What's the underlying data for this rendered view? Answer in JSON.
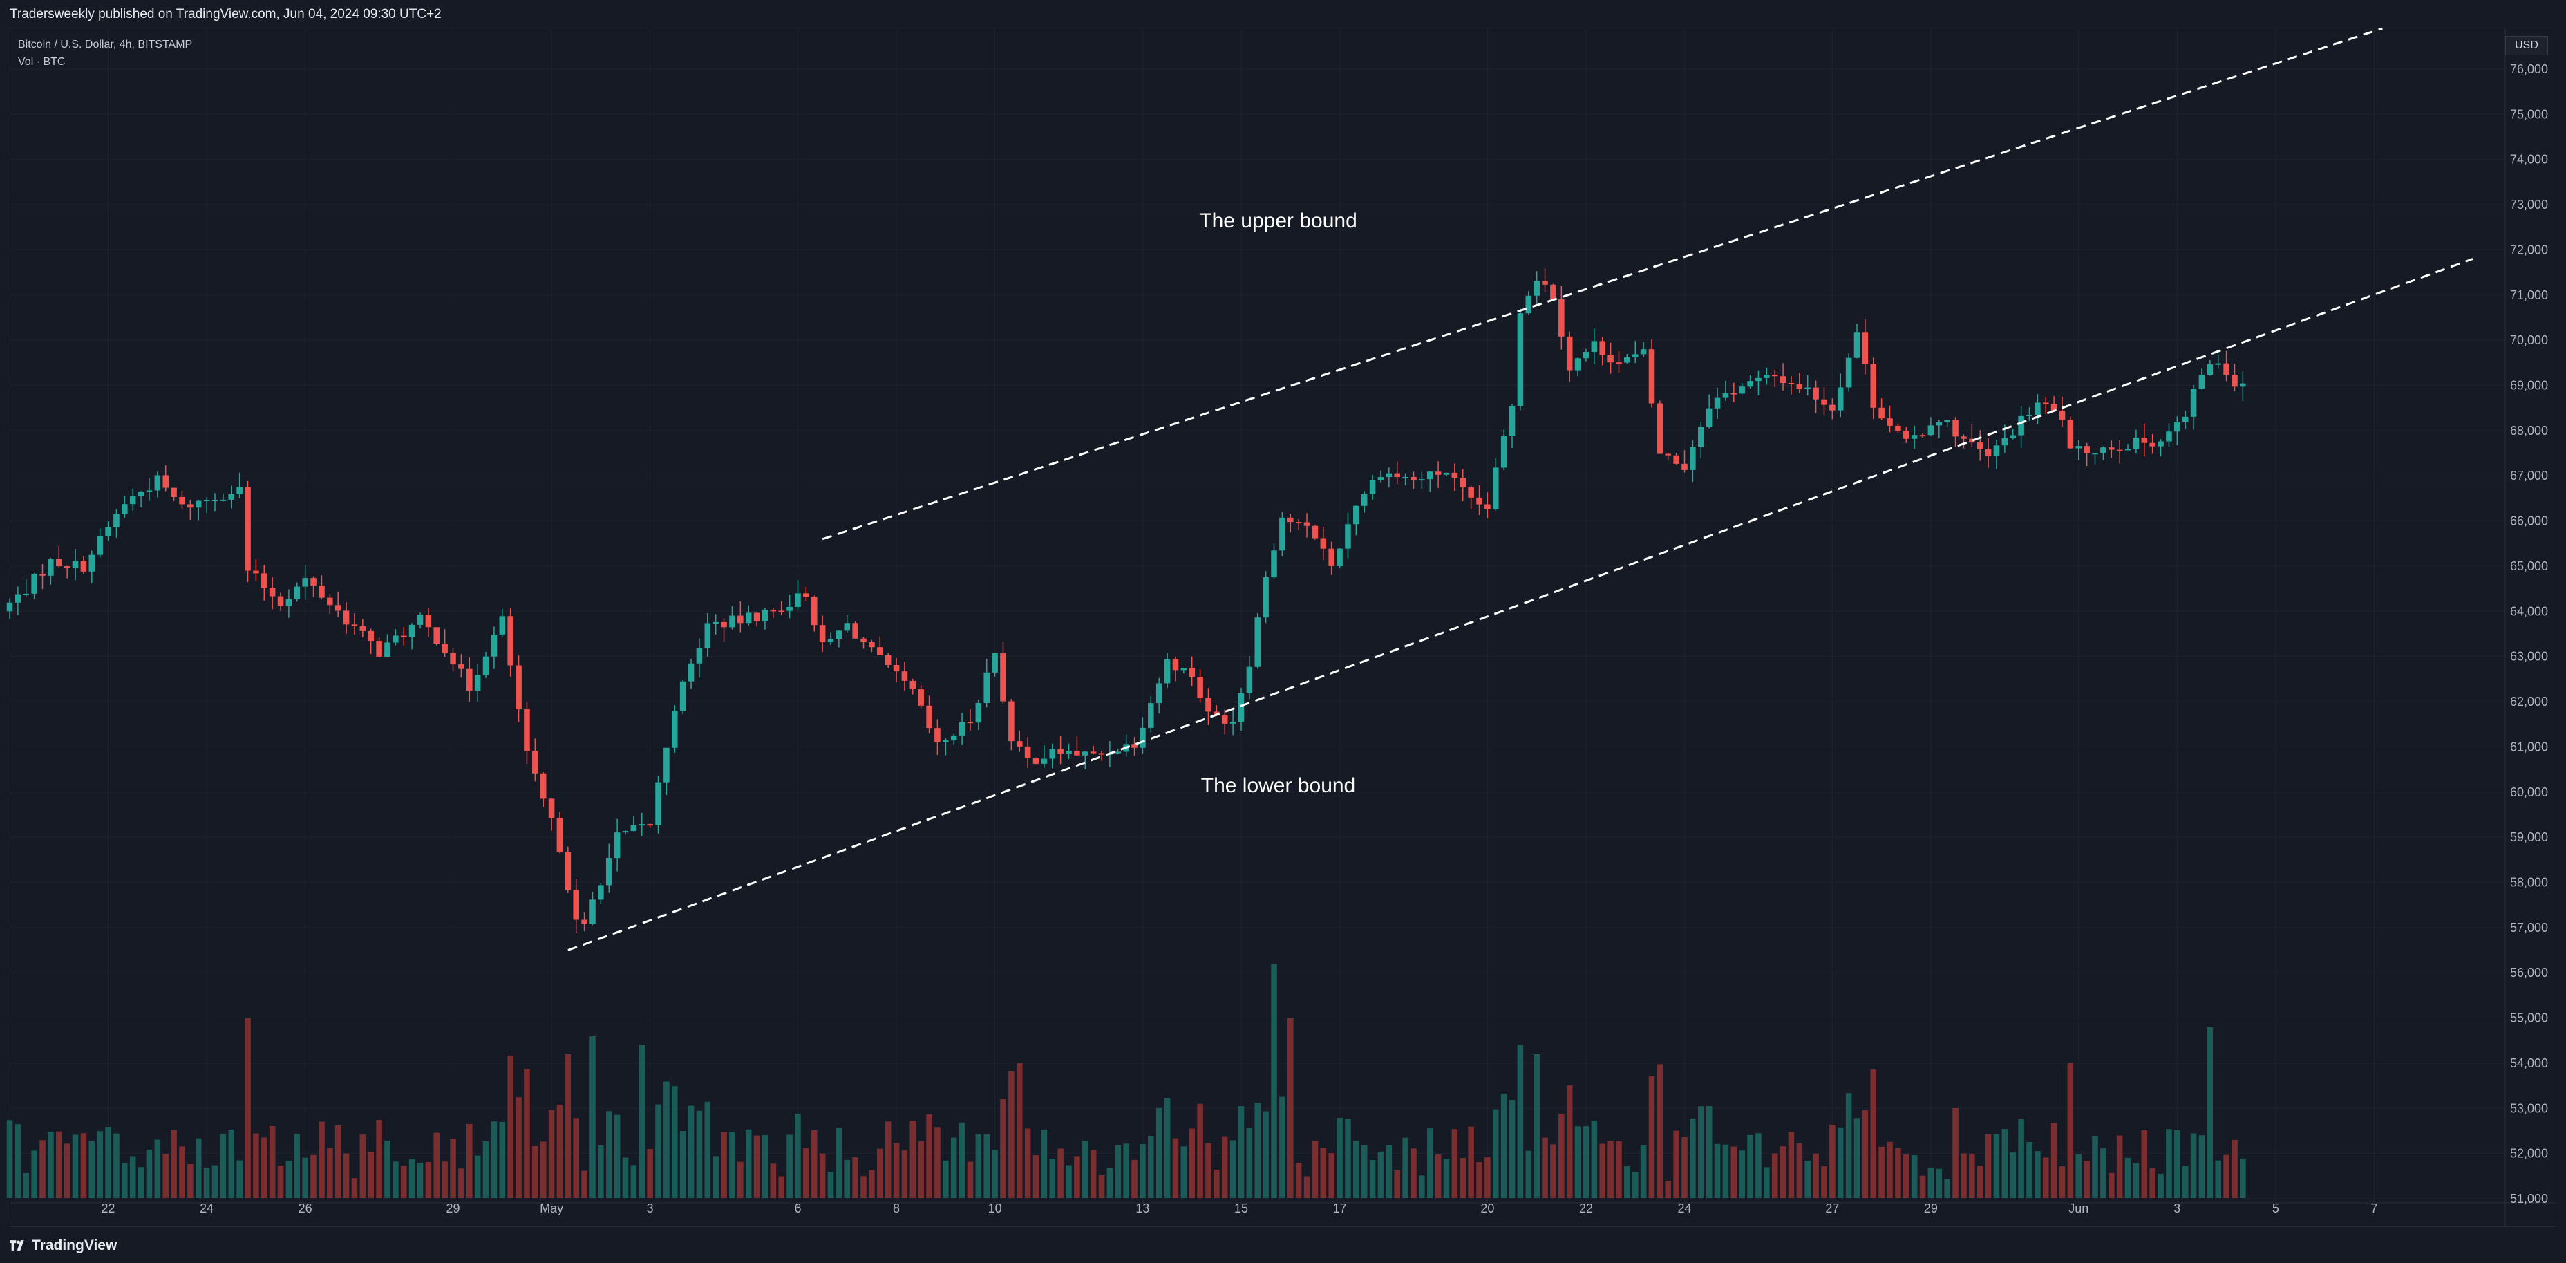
{
  "header": {
    "published_text": "Tradersweekly published on TradingView.com, Jun 04, 2024 09:30 UTC+2"
  },
  "legend": {
    "symbol_line": "Bitcoin / U.S. Dollar, 4h, BITSTAMP",
    "volume_line": "Vol · BTC"
  },
  "price_axis": {
    "currency_label": "USD"
  },
  "footer": {
    "logo_text": "TradingView"
  },
  "colors": {
    "background": "#161a25",
    "up": "#26a69a",
    "down": "#ef5350",
    "vol_up": "#1c5c58",
    "vol_down": "#7a2e30",
    "grid": "#1f2330",
    "trendline": "#ffffff"
  },
  "icons": {
    "logo": "tradingview-logo-icon"
  },
  "chart_data": {
    "type": "candlestick",
    "timeframe": "4h",
    "y_axis": {
      "min": 51000,
      "max": 76000,
      "step": 1000,
      "position": "right"
    },
    "x_axis": {
      "start_day": "2024-04-20",
      "end_day": "2024-06-09",
      "tick_labels": [
        {
          "label": "22",
          "day": "2024-04-22"
        },
        {
          "label": "24",
          "day": "2024-04-24"
        },
        {
          "label": "26",
          "day": "2024-04-26"
        },
        {
          "label": "29",
          "day": "2024-04-29"
        },
        {
          "label": "May",
          "day": "2024-05-01"
        },
        {
          "label": "3",
          "day": "2024-05-03"
        },
        {
          "label": "6",
          "day": "2024-05-06"
        },
        {
          "label": "8",
          "day": "2024-05-08"
        },
        {
          "label": "10",
          "day": "2024-05-10"
        },
        {
          "label": "13",
          "day": "2024-05-13"
        },
        {
          "label": "15",
          "day": "2024-05-15"
        },
        {
          "label": "17",
          "day": "2024-05-17"
        },
        {
          "label": "20",
          "day": "2024-05-20"
        },
        {
          "label": "22",
          "day": "2024-05-22"
        },
        {
          "label": "24",
          "day": "2024-05-24"
        },
        {
          "label": "27",
          "day": "2024-05-27"
        },
        {
          "label": "29",
          "day": "2024-05-29"
        },
        {
          "label": "Jun",
          "day": "2024-06-01"
        },
        {
          "label": "3",
          "day": "2024-06-03"
        },
        {
          "label": "5",
          "day": "2024-06-05"
        },
        {
          "label": "7",
          "day": "2024-06-07"
        }
      ]
    },
    "price_path": [
      {
        "t": "2024-04-20 00:00",
        "p": 64000
      },
      {
        "t": "2024-04-20 12:00",
        "p": 64500
      },
      {
        "t": "2024-04-21 00:00",
        "p": 65100
      },
      {
        "t": "2024-04-21 16:00",
        "p": 65000
      },
      {
        "t": "2024-04-22 12:00",
        "p": 66400
      },
      {
        "t": "2024-04-23 04:00",
        "p": 66900
      },
      {
        "t": "2024-04-23 16:00",
        "p": 66300
      },
      {
        "t": "2024-04-24 12:00",
        "p": 66600
      },
      {
        "t": "2024-04-24 20:00",
        "p": 66700
      },
      {
        "t": "2024-04-25 00:00",
        "p": 64900
      },
      {
        "t": "2024-04-25 16:00",
        "p": 64200
      },
      {
        "t": "2024-04-26 04:00",
        "p": 64700
      },
      {
        "t": "2024-04-26 20:00",
        "p": 64000
      },
      {
        "t": "2024-04-27 16:00",
        "p": 63100
      },
      {
        "t": "2024-04-28 12:00",
        "p": 63800
      },
      {
        "t": "2024-04-29 00:00",
        "p": 63200
      },
      {
        "t": "2024-04-29 12:00",
        "p": 62300
      },
      {
        "t": "2024-04-29 20:00",
        "p": 63100
      },
      {
        "t": "2024-04-30 04:00",
        "p": 63800
      },
      {
        "t": "2024-04-30 16:00",
        "p": 60800
      },
      {
        "t": "2024-05-01 08:00",
        "p": 58800
      },
      {
        "t": "2024-05-01 16:00",
        "p": 57100
      },
      {
        "t": "2024-05-01 20:00",
        "p": 57000
      },
      {
        "t": "2024-05-02 00:00",
        "p": 57600
      },
      {
        "t": "2024-05-02 12:00",
        "p": 59000
      },
      {
        "t": "2024-05-03 04:00",
        "p": 59300
      },
      {
        "t": "2024-05-03 16:00",
        "p": 61900
      },
      {
        "t": "2024-05-04 08:00",
        "p": 63700
      },
      {
        "t": "2024-05-05 00:00",
        "p": 63800
      },
      {
        "t": "2024-05-05 16:00",
        "p": 64000
      },
      {
        "t": "2024-05-06 08:00",
        "p": 64400
      },
      {
        "t": "2024-05-06 16:00",
        "p": 63200
      },
      {
        "t": "2024-05-07 04:00",
        "p": 63700
      },
      {
        "t": "2024-05-07 20:00",
        "p": 62900
      },
      {
        "t": "2024-05-08 12:00",
        "p": 62200
      },
      {
        "t": "2024-05-09 00:00",
        "p": 61000
      },
      {
        "t": "2024-05-09 16:00",
        "p": 61600
      },
      {
        "t": "2024-05-10 04:00",
        "p": 63100
      },
      {
        "t": "2024-05-10 12:00",
        "p": 61100
      },
      {
        "t": "2024-05-10 20:00",
        "p": 60700
      },
      {
        "t": "2024-05-11 12:00",
        "p": 60900
      },
      {
        "t": "2024-05-12 04:00",
        "p": 60800
      },
      {
        "t": "2024-05-13 00:00",
        "p": 61100
      },
      {
        "t": "2024-05-13 16:00",
        "p": 62900
      },
      {
        "t": "2024-05-14 04:00",
        "p": 62600
      },
      {
        "t": "2024-05-14 12:00",
        "p": 61700
      },
      {
        "t": "2024-05-15 00:00",
        "p": 61600
      },
      {
        "t": "2024-05-15 08:00",
        "p": 62900
      },
      {
        "t": "2024-05-15 16:00",
        "p": 64800
      },
      {
        "t": "2024-05-16 00:00",
        "p": 66100
      },
      {
        "t": "2024-05-16 16:00",
        "p": 65700
      },
      {
        "t": "2024-05-17 00:00",
        "p": 65000
      },
      {
        "t": "2024-05-17 12:00",
        "p": 66400
      },
      {
        "t": "2024-05-18 00:00",
        "p": 67100
      },
      {
        "t": "2024-05-18 16:00",
        "p": 66900
      },
      {
        "t": "2024-05-19 08:00",
        "p": 67100
      },
      {
        "t": "2024-05-19 20:00",
        "p": 66400
      },
      {
        "t": "2024-05-20 04:00",
        "p": 66300
      },
      {
        "t": "2024-05-20 16:00",
        "p": 68600
      },
      {
        "t": "2024-05-20 20:00",
        "p": 70700
      },
      {
        "t": "2024-05-21 04:00",
        "p": 71400
      },
      {
        "t": "2024-05-21 12:00",
        "p": 71000
      },
      {
        "t": "2024-05-21 20:00",
        "p": 69400
      },
      {
        "t": "2024-05-22 08:00",
        "p": 69900
      },
      {
        "t": "2024-05-22 20:00",
        "p": 69500
      },
      {
        "t": "2024-05-23 08:00",
        "p": 69700
      },
      {
        "t": "2024-05-23 16:00",
        "p": 67500
      },
      {
        "t": "2024-05-24 04:00",
        "p": 67200
      },
      {
        "t": "2024-05-24 16:00",
        "p": 68600
      },
      {
        "t": "2024-05-25 08:00",
        "p": 69000
      },
      {
        "t": "2024-05-26 00:00",
        "p": 69200
      },
      {
        "t": "2024-05-26 16:00",
        "p": 68900
      },
      {
        "t": "2024-05-27 04:00",
        "p": 68500
      },
      {
        "t": "2024-05-27 16:00",
        "p": 70200
      },
      {
        "t": "2024-05-28 00:00",
        "p": 68600
      },
      {
        "t": "2024-05-28 16:00",
        "p": 67700
      },
      {
        "t": "2024-05-29 08:00",
        "p": 68300
      },
      {
        "t": "2024-05-29 20:00",
        "p": 67800
      },
      {
        "t": "2024-05-30 08:00",
        "p": 67400
      },
      {
        "t": "2024-05-30 20:00",
        "p": 68000
      },
      {
        "t": "2024-05-31 08:00",
        "p": 68600
      },
      {
        "t": "2024-05-31 20:00",
        "p": 68300
      },
      {
        "t": "2024-06-01 00:00",
        "p": 67500
      },
      {
        "t": "2024-06-01 12:00",
        "p": 67600
      },
      {
        "t": "2024-06-02 04:00",
        "p": 67700
      },
      {
        "t": "2024-06-02 20:00",
        "p": 67800
      },
      {
        "t": "2024-06-03 08:00",
        "p": 68300
      },
      {
        "t": "2024-06-03 16:00",
        "p": 69300
      },
      {
        "t": "2024-06-04 00:00",
        "p": 69500
      },
      {
        "t": "2024-06-04 08:00",
        "p": 69100
      }
    ],
    "volume_spikes": [
      {
        "t": "2024-04-24 20:00",
        "v": 1.0
      },
      {
        "t": "2024-05-01 08:00",
        "v": 0.8
      },
      {
        "t": "2024-05-01 20:00",
        "v": 0.9
      },
      {
        "t": "2024-05-02 20:00",
        "v": 0.85
      },
      {
        "t": "2024-05-10 12:00",
        "v": 0.75
      },
      {
        "t": "2024-05-15 16:00",
        "v": 1.3
      },
      {
        "t": "2024-05-16 00:00",
        "v": 1.0
      },
      {
        "t": "2024-05-20 16:00",
        "v": 0.85
      },
      {
        "t": "2024-05-21 00:00",
        "v": 0.8
      },
      {
        "t": "2024-06-03 16:00",
        "v": 0.95
      },
      {
        "t": "2024-05-31 20:00",
        "v": 0.75
      }
    ],
    "trendlines": [
      {
        "name": "upper-channel-line",
        "style": "dashed",
        "from": {
          "t": "2024-05-06 12:00",
          "p": 65600
        },
        "to": {
          "t": "2024-06-07 04:00",
          "p": 76900
        }
      },
      {
        "name": "lower-channel-line",
        "style": "dashed",
        "from": {
          "t": "2024-05-01 08:00",
          "p": 56500
        },
        "to": {
          "t": "2024-06-09 00:00",
          "p": 71800
        }
      }
    ],
    "annotations": [
      {
        "text": "The upper bound",
        "t": "2024-05-15 16:00",
        "p": 72500
      },
      {
        "text": "The lower bound",
        "t": "2024-05-15 16:00",
        "p": 60000
      }
    ]
  }
}
